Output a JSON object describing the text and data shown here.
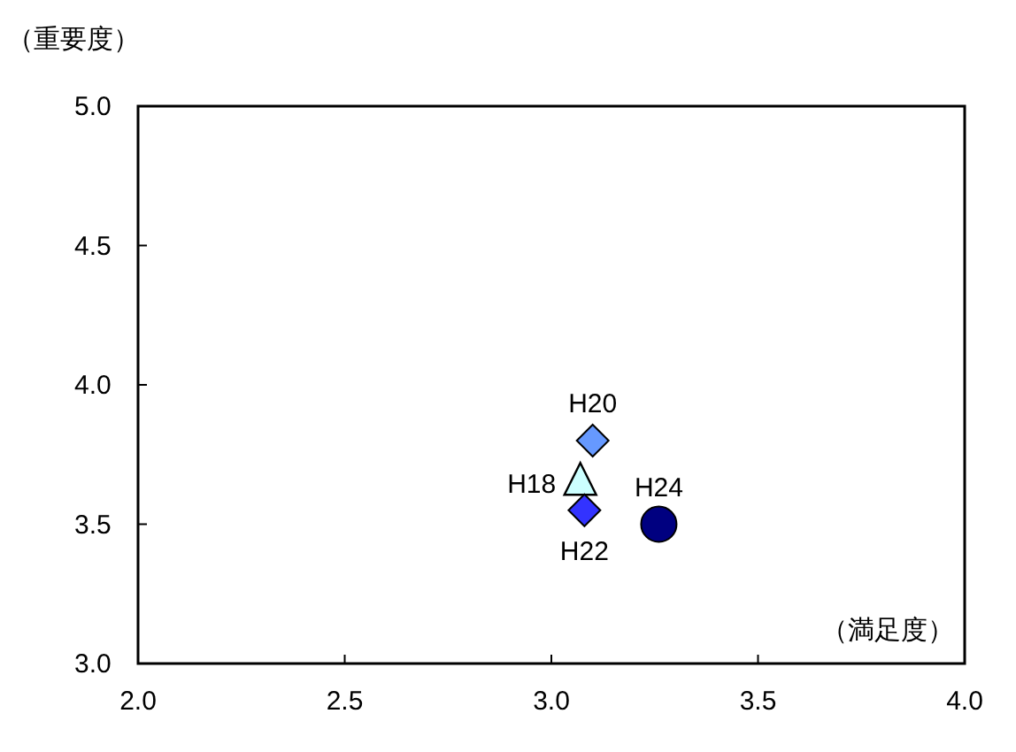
{
  "chart_data": {
    "type": "scatter",
    "xlabel": "（満足度）",
    "ylabel": "（重要度）",
    "xlim": [
      2.0,
      4.0
    ],
    "xticks": [
      {
        "value": 2.0,
        "label": "2.0"
      },
      2.5,
      {
        "value": 3.0,
        "label": "3.0"
      },
      3.5,
      {
        "value": 4.0,
        "label": "4.0"
      }
    ],
    "ylim": [
      3.0,
      5.0
    ],
    "yticks": [
      {
        "value": 3.0,
        "label": "3.0"
      },
      3.5,
      {
        "value": 4.0,
        "label": "4.0"
      },
      4.5,
      {
        "value": 5.0,
        "label": "5.0"
      }
    ],
    "grid": false,
    "series": [
      {
        "name": "H18",
        "marker": "triangle",
        "color": "#ccffff",
        "x": [
          3.07
        ],
        "values": [
          3.65
        ]
      },
      {
        "name": "H20",
        "marker": "diamond",
        "color": "#6699ff",
        "x": [
          3.1
        ],
        "values": [
          3.8
        ]
      },
      {
        "name": "H22",
        "marker": "diamond",
        "color": "#3333ff",
        "x": [
          3.08
        ],
        "values": [
          3.55
        ]
      },
      {
        "name": "H24",
        "marker": "circle",
        "color": "#000080",
        "x": [
          3.26
        ],
        "values": [
          3.5
        ]
      }
    ]
  }
}
